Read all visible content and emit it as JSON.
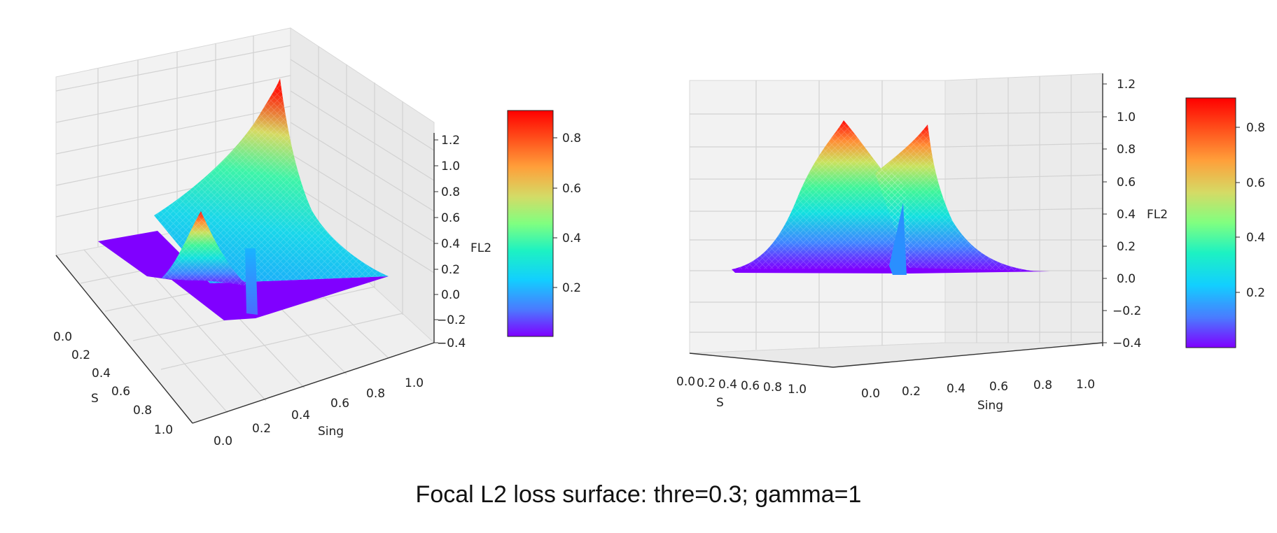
{
  "caption": "Focal L2 loss surface: thre=0.3; gamma=1",
  "colormap": [
    "#7f00ff",
    "#4a7bff",
    "#12cfff",
    "#1df2c2",
    "#80ff80",
    "#d4db66",
    "#ff9f3a",
    "#ff4d1a",
    "#ff0000"
  ],
  "chart_data": [
    {
      "type": "surface3d",
      "view": "oblique",
      "xlabel": "S",
      "ylabel": "Sing",
      "zlabel": "FL2",
      "x_ticks": [
        "0.0",
        "0.2",
        "0.4",
        "0.6",
        "0.8",
        "1.0"
      ],
      "y_ticks": [
        "0.0",
        "0.2",
        "0.4",
        "0.6",
        "0.8",
        "1.0"
      ],
      "z_ticks": [
        "1.2",
        "1.0",
        "0.8",
        "0.6",
        "0.4",
        "0.2",
        "0.0",
        "−0.2",
        "−0.4"
      ],
      "zlim": [
        -0.4,
        1.2
      ],
      "colorbar_ticks": [
        "0.8",
        "0.6",
        "0.4",
        "0.2"
      ],
      "colorbar_range": [
        0.0,
        0.9
      ]
    },
    {
      "type": "surface3d",
      "view": "front",
      "xlabel": "S",
      "ylabel": "Sing",
      "zlabel": "FL2",
      "x_ticks": [
        "0.0",
        "0.2",
        "0.4",
        "0.6",
        "0.8",
        "1.0"
      ],
      "y_ticks": [
        "0.0",
        "0.2",
        "0.4",
        "0.6",
        "0.8",
        "1.0"
      ],
      "z_ticks": [
        "1.2",
        "1.0",
        "0.8",
        "0.6",
        "0.4",
        "0.2",
        "0.0",
        "−0.2",
        "−0.4"
      ],
      "zlim": [
        -0.4,
        1.2
      ],
      "colorbar_ticks": [
        "0.8",
        "0.6",
        "0.4",
        "0.2"
      ],
      "colorbar_range": [
        0.0,
        0.9
      ]
    }
  ]
}
